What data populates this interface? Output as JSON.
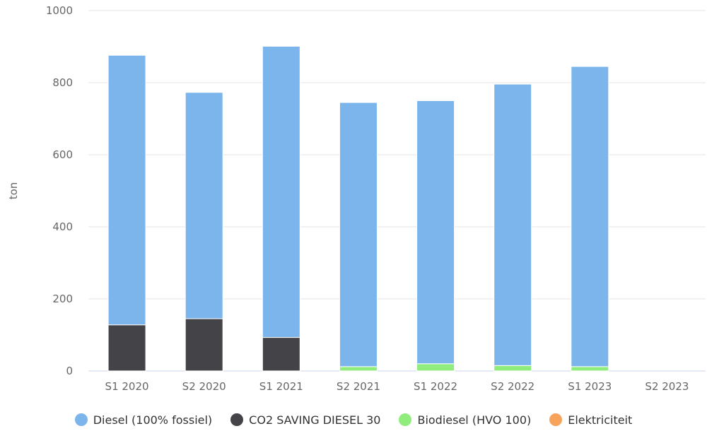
{
  "chart_data": {
    "type": "bar",
    "stacked": true,
    "title": "",
    "xlabel": "",
    "ylabel": "ton",
    "ylim": [
      0,
      1000
    ],
    "yticks": [
      0,
      200,
      400,
      600,
      800,
      1000
    ],
    "grid": true,
    "legend_position": "bottom",
    "categories": [
      "S1 2020",
      "S2 2020",
      "S1 2021",
      "S2 2021",
      "S1 2022",
      "S2 2022",
      "S1 2023",
      "S2 2023"
    ],
    "series": [
      {
        "name": "Diesel (100% fossiel)",
        "color": "#7cb5ec",
        "values": [
          748,
          628,
          808,
          733,
          730,
          781,
          833,
          0
        ]
      },
      {
        "name": "CO2 SAVING DIESEL 30",
        "color": "#434348",
        "values": [
          128,
          145,
          93,
          0,
          0,
          0,
          0,
          0
        ]
      },
      {
        "name": "Biodiesel (HVO 100)",
        "color": "#90ed7d",
        "values": [
          0,
          0,
          0,
          12,
          20,
          15,
          12,
          0
        ]
      },
      {
        "name": "Elektriciteit",
        "color": "#f7a35c",
        "values": [
          0,
          0,
          0,
          0,
          0,
          0,
          0,
          0
        ]
      }
    ]
  }
}
